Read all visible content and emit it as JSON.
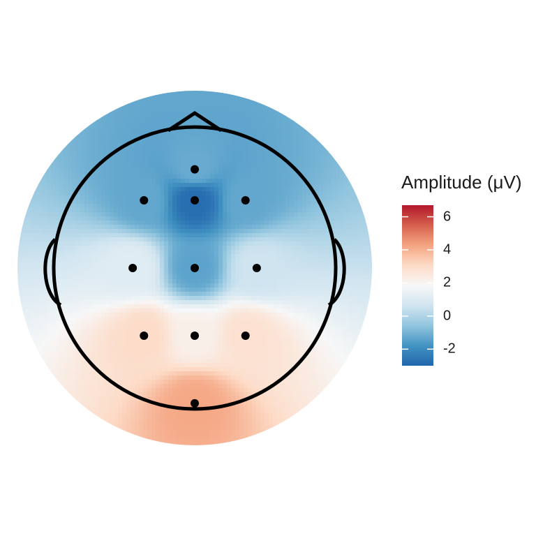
{
  "chart_data": {
    "type": "heatmap",
    "subtype": "eeg-topographic-map",
    "legend": {
      "title": "Amplitude (μV)",
      "range": [
        -3.0,
        6.7
      ],
      "ticks": [
        -2,
        0,
        2,
        4,
        6
      ],
      "tick_labels": [
        "-2",
        "0",
        "2",
        "4",
        "6"
      ],
      "placement": "right",
      "colormap": [
        "#2166ac",
        "#4393c3",
        "#92c5de",
        "#d1e5f0",
        "#f7f7f7",
        "#fddbc7",
        "#f4a582",
        "#d6604d",
        "#b2182b"
      ]
    },
    "electrodes": [
      {
        "x": 0.0,
        "y": 0.7,
        "amplitude": -1.2
      },
      {
        "x": -0.36,
        "y": 0.48,
        "amplitude": -1.3
      },
      {
        "x": 0.0,
        "y": 0.48,
        "amplitude": -2.8
      },
      {
        "x": 0.36,
        "y": 0.48,
        "amplitude": -1.3
      },
      {
        "x": -0.44,
        "y": 0.0,
        "amplitude": 1.1
      },
      {
        "x": 0.0,
        "y": 0.0,
        "amplitude": -1.4
      },
      {
        "x": 0.44,
        "y": 0.0,
        "amplitude": 0.6
      },
      {
        "x": -0.36,
        "y": -0.48,
        "amplitude": 3.0
      },
      {
        "x": 0.0,
        "y": -0.48,
        "amplitude": 2.2
      },
      {
        "x": 0.36,
        "y": -0.48,
        "amplitude": 2.8
      },
      {
        "x": 0.0,
        "y": -0.96,
        "amplitude": 4.2
      }
    ],
    "grid": false,
    "head_outline": true
  }
}
